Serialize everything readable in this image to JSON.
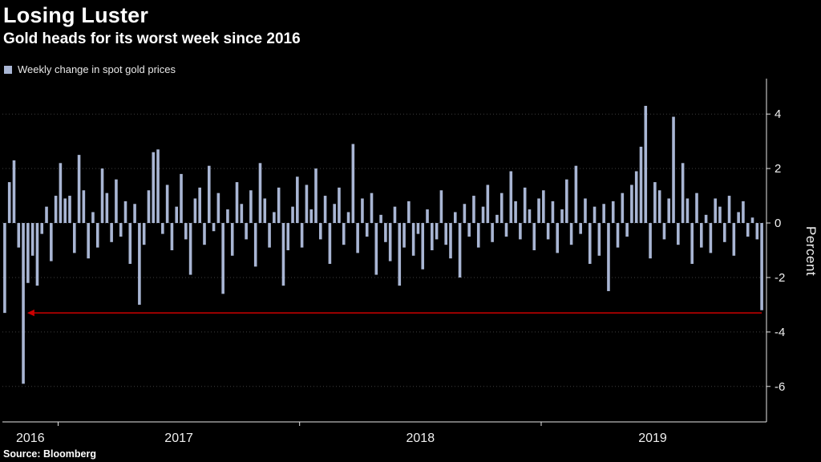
{
  "header": {
    "title": "Losing Luster",
    "subtitle": "Gold heads for its worst week since 2016"
  },
  "legend": {
    "label": "Weekly change in spot gold prices"
  },
  "source": "Source: Bloomberg",
  "chart_data": {
    "type": "bar",
    "title": "Losing Luster",
    "subtitle": "Gold heads for its worst week since 2016",
    "series_name": "Weekly change in spot gold prices",
    "ylabel": "Percent",
    "unit": "percent",
    "ylim": [
      -7.3,
      5.3
    ],
    "y_ticks": [
      4,
      2,
      0,
      -2,
      -4,
      -6
    ],
    "grid": true,
    "legend_position": "top-left",
    "bar_color": "#a9b6d4",
    "grid_color": "#3f3f3f",
    "axis_color": "#e6e6e6",
    "x_years": [
      {
        "label": "2016",
        "start_index": 0
      },
      {
        "label": "2017",
        "start_index": 12
      },
      {
        "label": "2018",
        "start_index": 64
      },
      {
        "label": "2019",
        "start_index": 116
      }
    ],
    "values": [
      -3.3,
      1.5,
      2.3,
      -0.9,
      -5.9,
      -2.2,
      -1.2,
      -2.3,
      -0.4,
      0.6,
      -1.4,
      1.0,
      2.2,
      0.9,
      1.0,
      -1.1,
      2.5,
      1.2,
      -1.3,
      0.4,
      -0.9,
      2.0,
      1.1,
      -0.7,
      1.6,
      -0.5,
      0.8,
      -1.5,
      0.7,
      -3.0,
      -0.8,
      1.2,
      2.6,
      2.7,
      -0.4,
      1.4,
      -1.0,
      0.6,
      1.8,
      -0.6,
      -1.9,
      0.9,
      1.3,
      -0.8,
      2.1,
      -0.3,
      1.1,
      -2.6,
      0.5,
      -1.2,
      1.5,
      0.7,
      -0.6,
      1.2,
      -1.6,
      2.2,
      0.9,
      -0.9,
      0.4,
      1.3,
      -2.3,
      -1.0,
      0.6,
      1.7,
      -0.9,
      1.4,
      0.5,
      2.0,
      -0.6,
      1.0,
      -1.5,
      0.7,
      1.3,
      -0.8,
      0.4,
      2.9,
      -1.1,
      0.9,
      -0.5,
      1.1,
      -1.9,
      0.3,
      -0.7,
      -1.4,
      0.6,
      -2.3,
      -0.9,
      0.8,
      -1.2,
      -0.4,
      -1.7,
      0.5,
      -1.0,
      -0.6,
      1.2,
      -0.8,
      -1.3,
      0.4,
      -2.0,
      0.7,
      -0.5,
      1.0,
      -0.9,
      0.6,
      1.4,
      -0.7,
      0.3,
      1.1,
      -0.5,
      1.9,
      0.8,
      -0.6,
      1.3,
      0.5,
      -1.0,
      0.9,
      1.2,
      -0.6,
      0.8,
      -1.1,
      0.5,
      1.6,
      -0.8,
      2.1,
      -0.4,
      0.9,
      -1.5,
      0.6,
      -1.2,
      0.7,
      -2.5,
      0.8,
      -0.9,
      1.1,
      -0.5,
      1.4,
      1.9,
      2.8,
      4.3,
      -1.3,
      1.5,
      1.2,
      -0.6,
      0.9,
      3.9,
      -0.8,
      2.2,
      0.9,
      -1.5,
      1.1,
      -0.9,
      0.3,
      -1.1,
      0.9,
      0.6,
      -0.7,
      1.0,
      -1.2,
      0.4,
      0.8,
      -0.5,
      0.2,
      -0.6,
      -3.2
    ],
    "annotation": {
      "type": "arrow",
      "color": "#cc0001",
      "y_value": -3.3,
      "from_index": 163,
      "to_index": 5
    }
  }
}
